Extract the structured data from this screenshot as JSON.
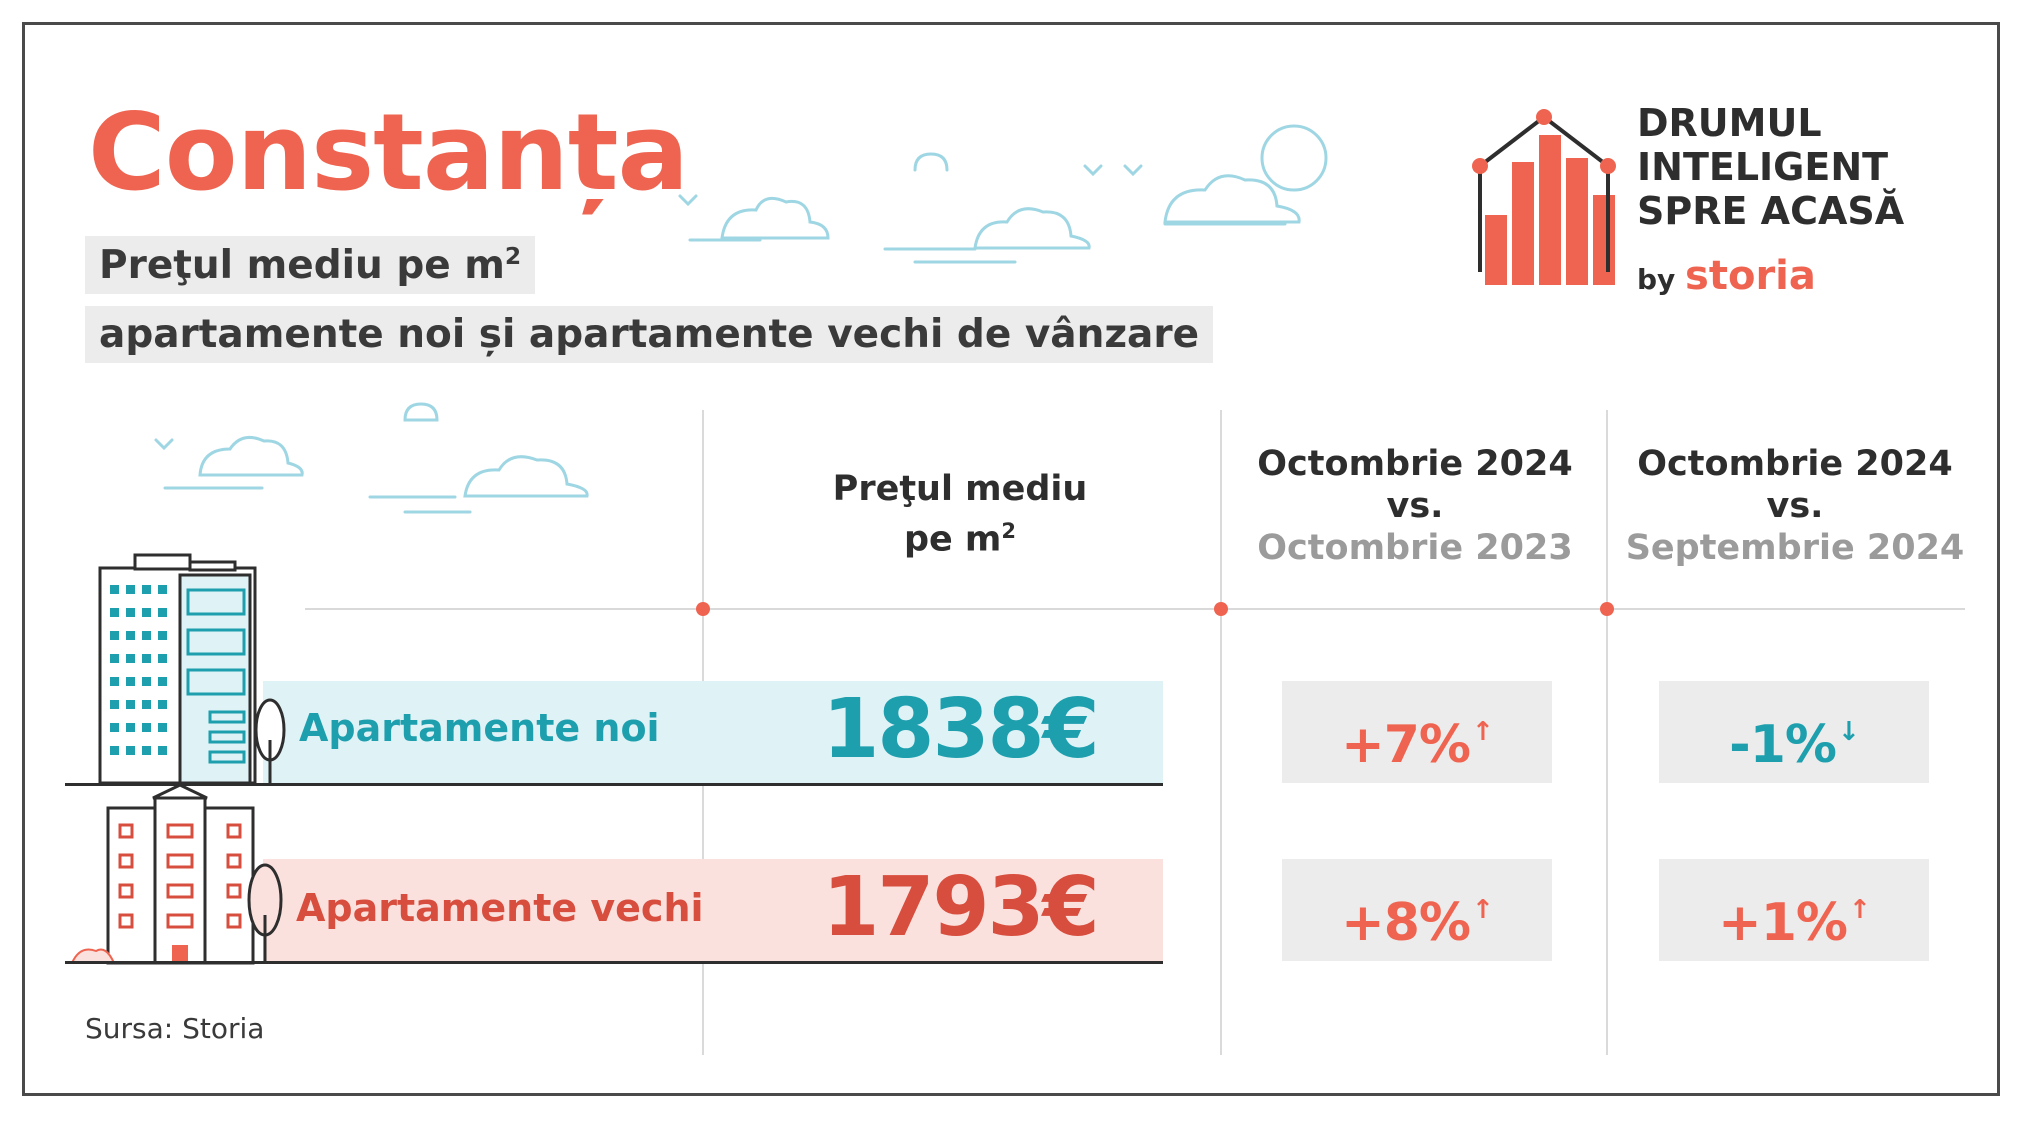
{
  "header": {
    "city": "Constanța",
    "subtitle_line1": "Preţul mediu pe m",
    "subtitle_line1_sup": "2",
    "subtitle_line2": "apartamente noi și apartamente vechi de vânzare"
  },
  "brand": {
    "line1": "DRUMUL",
    "line2": "INTELIGENT",
    "line3": "SPRE ACASĂ",
    "by": "by",
    "logo": "storia"
  },
  "columns": {
    "price_header_line1": "Preţul mediu",
    "price_header_line2": "pe m",
    "price_header_sup": "2",
    "yoy_line1": "Octombrie 2024",
    "yoy_line2": "vs.",
    "yoy_line3": "Octombrie 2023",
    "mom_line1": "Octombrie 2024",
    "mom_line2": "vs.",
    "mom_line3": "Septembrie 2024"
  },
  "rows": [
    {
      "label": "Apartamente noi",
      "price": "1838€",
      "yoy": "+7%",
      "yoy_arrow": "↑",
      "mom": "-1%",
      "mom_arrow": "↓"
    },
    {
      "label": "Apartamente vechi",
      "price": "1793€",
      "yoy": "+8%",
      "yoy_arrow": "↑",
      "mom": "+1%",
      "mom_arrow": "↑"
    }
  ],
  "footer": {
    "source": "Sursa: Storia"
  },
  "colors": {
    "accent": "#ef6450",
    "teal": "#1e9fae",
    "dark_red": "#d74d3e",
    "gray_bg": "#ececec"
  }
}
